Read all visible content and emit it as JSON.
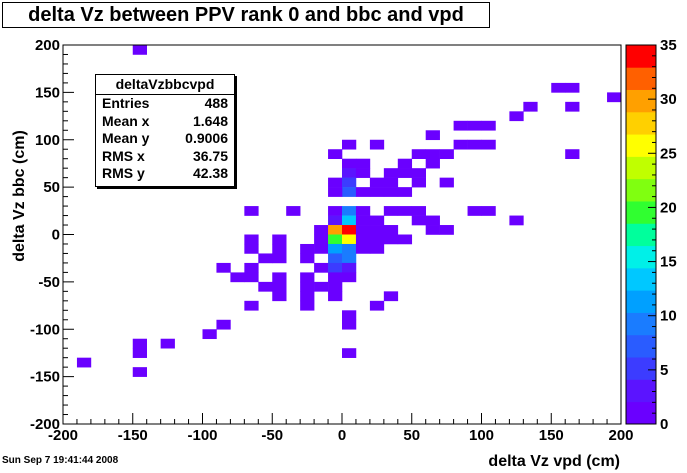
{
  "title": "delta Vz between PPV rank 0 and bbc and vpd",
  "datestamp": "Sun Sep  7 19:41:44 2008",
  "stats": {
    "name": "deltaVzbbcvpd",
    "rows": [
      {
        "label": "Entries",
        "value": "488"
      },
      {
        "label": "Mean x",
        "value": "1.648"
      },
      {
        "label": "Mean y",
        "value": "0.9006"
      },
      {
        "label": "RMS x",
        "value": "36.75"
      },
      {
        "label": "RMS y",
        "value": "42.38"
      }
    ]
  },
  "chart_data": {
    "type": "heatmap",
    "xlabel": "delta Vz vpd (cm)",
    "ylabel": "delta Vz bbc (cm)",
    "xlim": [
      -200,
      200
    ],
    "ylim": [
      -200,
      200
    ],
    "bin_size": 10,
    "x_ticks": [
      "-200",
      "-150",
      "-100",
      "-50",
      "0",
      "50",
      "100",
      "150",
      "200"
    ],
    "y_ticks": [
      "-200",
      "-150",
      "-100",
      "-50",
      "0",
      "50",
      "100",
      "150",
      "200"
    ],
    "z_ticks": [
      "0",
      "5",
      "10",
      "15",
      "20",
      "25",
      "30",
      "35"
    ],
    "zlim": [
      0,
      35
    ],
    "palette": [
      "#6a00ff",
      "#5b14ff",
      "#3c3cff",
      "#2a5cff",
      "#1a7cff",
      "#00a0ff",
      "#00c8ff",
      "#00f0e8",
      "#00ff9c",
      "#30ff30",
      "#80ff10",
      "#c0ff00",
      "#ffff00",
      "#ffd000",
      "#ffa000",
      "#ff6000",
      "#ff0000"
    ],
    "bins": [
      [
        -150,
        190,
        1
      ],
      [
        160,
        150,
        1
      ],
      [
        150,
        150,
        1
      ],
      [
        190,
        140,
        1
      ],
      [
        130,
        130,
        1
      ],
      [
        160,
        130,
        1
      ],
      [
        120,
        120,
        1
      ],
      [
        90,
        110,
        1
      ],
      [
        100,
        110,
        1
      ],
      [
        80,
        110,
        1
      ],
      [
        60,
        100,
        1
      ],
      [
        0,
        90,
        1
      ],
      [
        80,
        90,
        1
      ],
      [
        90,
        90,
        1
      ],
      [
        100,
        90,
        1
      ],
      [
        20,
        90,
        1
      ],
      [
        160,
        80,
        1
      ],
      [
        -10,
        80,
        1
      ],
      [
        50,
        80,
        1
      ],
      [
        60,
        80,
        1
      ],
      [
        70,
        80,
        1
      ],
      [
        0,
        70,
        2
      ],
      [
        10,
        70,
        1
      ],
      [
        40,
        70,
        1
      ],
      [
        60,
        70,
        1
      ],
      [
        40,
        60,
        1
      ],
      [
        0,
        60,
        3
      ],
      [
        10,
        60,
        1
      ],
      [
        30,
        60,
        1
      ],
      [
        50,
        60,
        1
      ],
      [
        50,
        50,
        1
      ],
      [
        -10,
        50,
        1
      ],
      [
        0,
        50,
        6
      ],
      [
        20,
        50,
        1
      ],
      [
        70,
        50,
        1
      ],
      [
        30,
        40,
        1
      ],
      [
        40,
        40,
        1
      ],
      [
        0,
        40,
        8
      ],
      [
        -10,
        40,
        2
      ],
      [
        10,
        40,
        1
      ],
      [
        20,
        40,
        1
      ],
      [
        30,
        50,
        1
      ],
      [
        -70,
        20,
        1
      ],
      [
        -40,
        20,
        1
      ],
      [
        -10,
        20,
        2
      ],
      [
        0,
        20,
        10
      ],
      [
        10,
        20,
        2
      ],
      [
        30,
        20,
        1
      ],
      [
        40,
        20,
        1
      ],
      [
        50,
        20,
        1
      ],
      [
        90,
        20,
        1
      ],
      [
        100,
        20,
        1
      ],
      [
        120,
        10,
        1
      ],
      [
        -10,
        10,
        4
      ],
      [
        0,
        10,
        14
      ],
      [
        10,
        10,
        2
      ],
      [
        20,
        10,
        1
      ],
      [
        50,
        10,
        1
      ],
      [
        60,
        10,
        1
      ],
      [
        -20,
        0,
        1
      ],
      [
        -10,
        0,
        30
      ],
      [
        0,
        0,
        34
      ],
      [
        10,
        0,
        2
      ],
      [
        20,
        0,
        1
      ],
      [
        30,
        0,
        1
      ],
      [
        60,
        0,
        1
      ],
      [
        70,
        0,
        1
      ],
      [
        -70,
        -10,
        1
      ],
      [
        -50,
        -10,
        1
      ],
      [
        -20,
        -10,
        1
      ],
      [
        -10,
        -10,
        20
      ],
      [
        0,
        -10,
        26
      ],
      [
        10,
        -10,
        1
      ],
      [
        20,
        -10,
        1
      ],
      [
        30,
        -10,
        1
      ],
      [
        40,
        -10,
        1
      ],
      [
        -70,
        -20,
        1
      ],
      [
        -50,
        -20,
        1
      ],
      [
        -30,
        -20,
        2
      ],
      [
        -20,
        -20,
        1
      ],
      [
        -10,
        -20,
        12
      ],
      [
        0,
        -20,
        10
      ],
      [
        10,
        -20,
        1
      ],
      [
        20,
        -20,
        1
      ],
      [
        -60,
        -30,
        1
      ],
      [
        -50,
        -30,
        1
      ],
      [
        -30,
        -30,
        1
      ],
      [
        -10,
        -30,
        8
      ],
      [
        0,
        -30,
        9
      ],
      [
        -90,
        -40,
        1
      ],
      [
        -70,
        -40,
        1
      ],
      [
        -20,
        -40,
        1
      ],
      [
        -10,
        -40,
        5
      ],
      [
        0,
        -40,
        3
      ],
      [
        -80,
        -50,
        1
      ],
      [
        -70,
        -50,
        1
      ],
      [
        -50,
        -50,
        1
      ],
      [
        -30,
        -50,
        1
      ],
      [
        -10,
        -50,
        2
      ],
      [
        0,
        -50,
        2
      ],
      [
        -60,
        -60,
        1
      ],
      [
        -50,
        -60,
        1
      ],
      [
        -30,
        -60,
        1
      ],
      [
        -20,
        -60,
        1
      ],
      [
        -10,
        -60,
        1
      ],
      [
        -50,
        -70,
        1
      ],
      [
        -30,
        -70,
        1
      ],
      [
        -10,
        -70,
        1
      ],
      [
        30,
        -70,
        1
      ],
      [
        -70,
        -80,
        1
      ],
      [
        -30,
        -80,
        1
      ],
      [
        20,
        -80,
        1
      ],
      [
        0,
        -90,
        1
      ],
      [
        0,
        -100,
        1
      ],
      [
        -90,
        -100,
        1
      ],
      [
        -100,
        -110,
        1
      ],
      [
        -150,
        -120,
        1
      ],
      [
        -130,
        -120,
        1
      ],
      [
        -150,
        -130,
        1
      ],
      [
        0,
        -130,
        1
      ],
      [
        -190,
        -140,
        1
      ],
      [
        -150,
        -150,
        1
      ]
    ]
  }
}
